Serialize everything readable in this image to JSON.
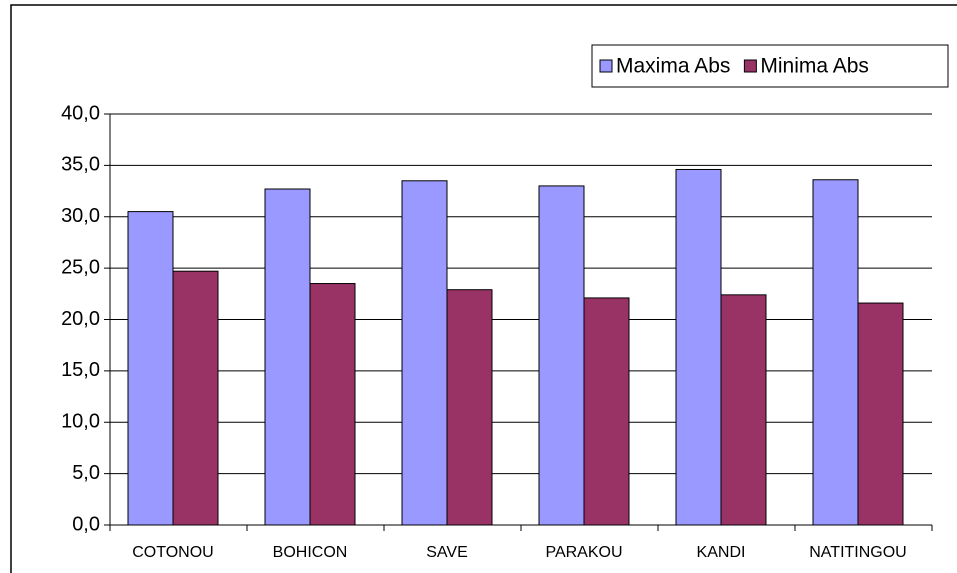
{
  "chart_data": {
    "type": "bar",
    "categories": [
      "COTONOU",
      "BOHICON",
      "SAVE",
      "PARAKOU",
      "KANDI",
      "NATITINGOU"
    ],
    "series": [
      {
        "name": "Maxima Abs",
        "color": "#9999ff",
        "values": [
          30.5,
          32.7,
          33.5,
          33.0,
          34.6,
          33.6
        ]
      },
      {
        "name": "Minima Abs",
        "color": "#993366",
        "values": [
          24.7,
          23.5,
          22.9,
          22.1,
          22.4,
          21.6
        ]
      }
    ],
    "ylim": [
      0,
      40
    ],
    "yticks": [
      {
        "value": 0,
        "label": "0,0"
      },
      {
        "value": 5,
        "label": "5,0"
      },
      {
        "value": 10,
        "label": "10,0"
      },
      {
        "value": 15,
        "label": "15,0"
      },
      {
        "value": 20,
        "label": "20,0"
      },
      {
        "value": 25,
        "label": "25,0"
      },
      {
        "value": 30,
        "label": "30,0"
      },
      {
        "value": 35,
        "label": "35,0"
      },
      {
        "value": 40,
        "label": "40,0"
      }
    ],
    "grid": true,
    "legend": "top-right"
  }
}
